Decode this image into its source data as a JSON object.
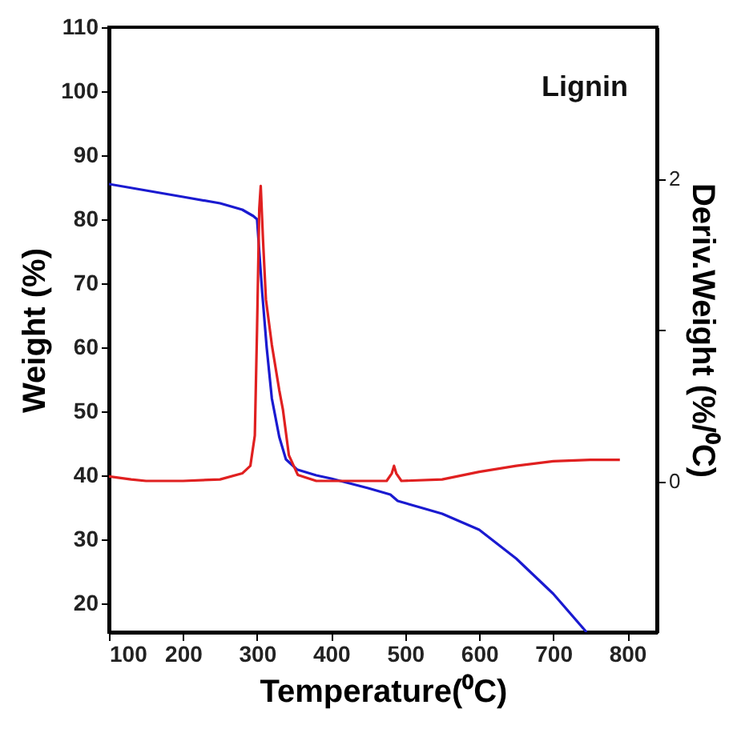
{
  "chart_data": {
    "type": "line",
    "xlabel": "Temperature(⁰C)",
    "ylabel": "Weight (%)",
    "y2label": "Deriv.Weight (%/⁰C)",
    "annotations": [
      "Lignin"
    ],
    "xlim": [
      100,
      840
    ],
    "xticks": [
      100,
      200,
      300,
      400,
      500,
      600,
      700,
      800
    ],
    "ylim": [
      15.5,
      110
    ],
    "yticks": [
      20,
      30,
      40,
      50,
      60,
      70,
      80,
      90,
      100,
      110
    ],
    "y2lim": [
      -1,
      3
    ],
    "y2ticks": [
      0,
      {
        "value": 1,
        "label": null
      },
      2
    ],
    "grid": false,
    "marker": "none",
    "line_style": "solid",
    "series": [
      {
        "color": "#1a1ad0",
        "x": [
          100,
          150,
          200,
          250,
          280,
          295,
          300,
          303,
          307,
          313,
          320,
          330,
          339,
          354,
          380,
          400,
          450,
          480,
          490,
          520,
          550,
          600,
          650,
          700,
          745
        ],
        "values": [
          85.5,
          84.5,
          83.5,
          82.5,
          81.5,
          80.5,
          80,
          75,
          68.5,
          60,
          52,
          46,
          42.5,
          40.9,
          40,
          39.5,
          38,
          37,
          36,
          35,
          34,
          31.5,
          27,
          21.5,
          15.5
        ]
      },
      {
        "color": "#e02020",
        "axis": "y2",
        "x": [
          100,
          130,
          150,
          200,
          250,
          280,
          291,
          297,
          300,
          303,
          305,
          308,
          312,
          320,
          330,
          335,
          343,
          355,
          380,
          420,
          475,
          482,
          485,
          488,
          495,
          550,
          600,
          650,
          700,
          750,
          790
        ],
        "values": [
          0.03,
          0.01,
          0,
          0,
          0.01,
          0.05,
          0.1,
          0.3,
          1,
          1.8,
          1.95,
          1.6,
          1.2,
          0.9,
          0.6,
          0.47,
          0.17,
          0.04,
          0,
          0,
          0,
          0.05,
          0.1,
          0.05,
          0,
          0.01,
          0.06,
          0.1,
          0.13,
          0.14,
          0.14
        ]
      }
    ]
  }
}
